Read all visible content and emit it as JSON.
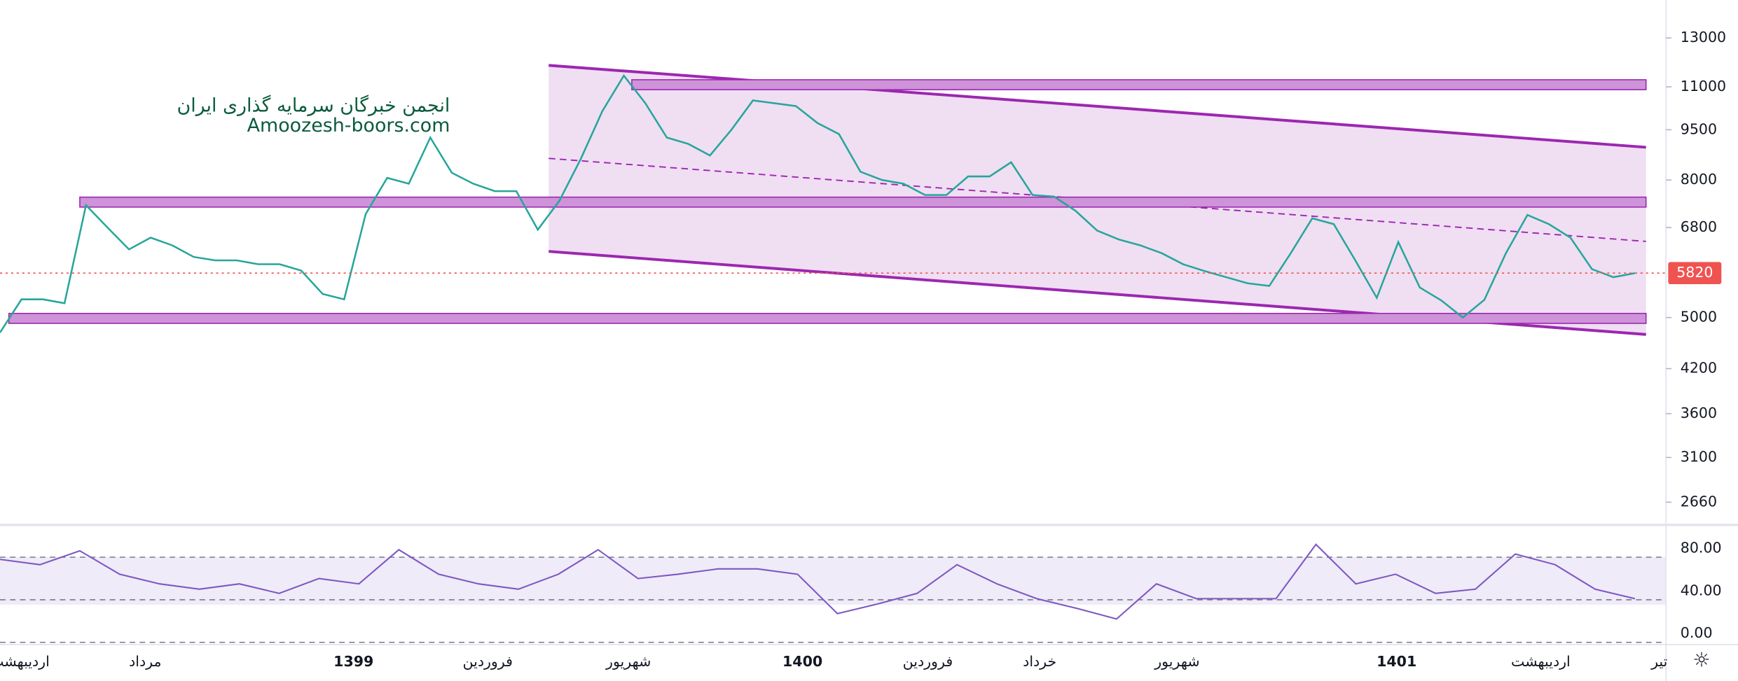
{
  "chart_data": {
    "type": "line",
    "watermark_title": "انجمن خبرگان سرمایه گذاری ایران",
    "watermark_site": "Amoozesh-boors.com",
    "log_scale": true,
    "ylim": [
      2480,
      14800
    ],
    "yticks": [
      2660,
      3100,
      3600,
      4200,
      5000,
      6800,
      8000,
      9500,
      11000,
      13000
    ],
    "last_price": 5820,
    "last_price_color": "#ef5350",
    "x_labels": [
      "اردیبهشت",
      "مرداد",
      "1399",
      "فروردین",
      "شهریور",
      "1400",
      "فروردین",
      "خرداد",
      "شهریور",
      "1401",
      "اردیبهشت",
      "تیر"
    ],
    "series": [
      {
        "name": "Price",
        "color": "#26a69a",
        "values": [
          4750,
          5320,
          5320,
          5250,
          7340,
          6800,
          6310,
          6570,
          6400,
          6150,
          6080,
          6080,
          6000,
          6000,
          5870,
          5420,
          5320,
          7120,
          8060,
          7900,
          9250,
          8200,
          7900,
          7700,
          7700,
          6750,
          7450,
          8600,
          10120,
          11430,
          10400,
          9250,
          9050,
          8700,
          9500,
          10500,
          10400,
          10300,
          9720,
          9360,
          8230,
          8000,
          7900,
          7600,
          7600,
          8100,
          8100,
          8500,
          7600,
          7560,
          7200,
          6730,
          6530,
          6400,
          6230,
          6000,
          5860,
          5740,
          5620,
          5570,
          6230,
          7020,
          6880,
          6080,
          5350,
          6470,
          5540,
          5300,
          5000,
          5310,
          6230,
          7100,
          6880,
          6570,
          5900,
          5740,
          5820
        ]
      }
    ],
    "rsi": {
      "color": "#7e57c2",
      "ylim": [
        0,
        102
      ],
      "yticks": [
        {
          "value": 0,
          "label": "0.00"
        },
        {
          "value": 40,
          "label": "40.00"
        },
        {
          "value": 80,
          "label": "80.00"
        }
      ],
      "values": [
        78,
        73,
        86,
        64,
        55,
        50,
        55,
        46,
        60,
        55,
        87,
        64,
        55,
        50,
        64,
        87,
        60,
        64,
        69,
        69,
        64,
        27,
        36,
        46,
        73,
        55,
        41,
        32,
        22,
        55,
        41,
        41,
        41,
        92,
        55,
        64,
        46,
        50,
        83,
        73,
        50,
        41
      ]
    }
  }
}
